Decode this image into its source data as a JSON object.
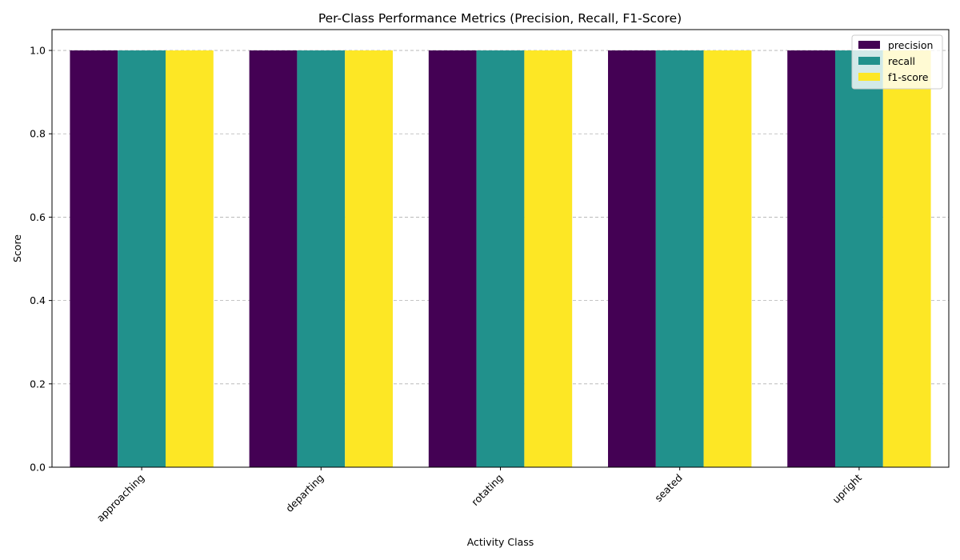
{
  "chart_data": {
    "type": "bar",
    "title": "Per-Class Performance Metrics (Precision, Recall, F1-Score)",
    "xlabel": "Activity Class",
    "ylabel": "Score",
    "categories": [
      "approaching",
      "departing",
      "rotating",
      "seated",
      "upright"
    ],
    "series": [
      {
        "name": "precision",
        "color": "#440154",
        "values": [
          1.0,
          1.0,
          1.0,
          1.0,
          1.0
        ]
      },
      {
        "name": "recall",
        "color": "#21918c",
        "values": [
          1.0,
          1.0,
          1.0,
          1.0,
          1.0
        ]
      },
      {
        "name": "f1-score",
        "color": "#fde725",
        "values": [
          1.0,
          1.0,
          1.0,
          1.0,
          1.0
        ]
      }
    ],
    "ylim": [
      0,
      1.05
    ],
    "yticks": [
      "0.0",
      "0.2",
      "0.4",
      "0.6",
      "0.8",
      "1.0"
    ],
    "grid": "y-dashed",
    "legend_position": "top-right"
  }
}
